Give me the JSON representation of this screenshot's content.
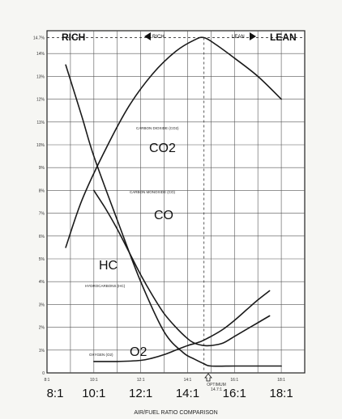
{
  "chart_data": {
    "type": "line",
    "title": "",
    "xlabel": "AIR/FUEL RATIO COMPARISON",
    "ylabel": "",
    "xlim": [
      8,
      19
    ],
    "ylim": [
      0,
      15
    ],
    "grid": true,
    "x_ticks_small": [
      "8:1",
      "10:1",
      "12:1",
      "14:1",
      "16:1",
      "18:1"
    ],
    "x_ticks_big": [
      "8:1",
      "10:1",
      "12:1",
      "14:1",
      "16:1",
      "18:1"
    ],
    "y_ticks": [
      "0",
      "1%",
      "2%",
      "3%",
      "4%",
      "5%",
      "6%",
      "7%",
      "8%",
      "9%",
      "10%",
      "11%",
      "12%",
      "13%",
      "14%",
      "14.7%"
    ],
    "corner_labels": {
      "rich": "RICH",
      "lean": "LEAN"
    },
    "top_arrows": {
      "rich": "RICH",
      "lean": "LEAN"
    },
    "optimum_label": "OPTIMUM",
    "optimum_value": "14.7:1",
    "optimum_x": 14.7,
    "peak_value": 14.7,
    "series": [
      {
        "key": "co2",
        "name": "CARBON DIOXIDE (CO2)",
        "big_label": "CO2",
        "x": [
          8.8,
          9.5,
          10.5,
          11.5,
          12.5,
          13.5,
          14.3,
          14.7,
          15.2,
          16.0,
          17.0,
          18.0
        ],
        "y": [
          5.5,
          7.6,
          9.8,
          11.7,
          13.1,
          14.1,
          14.6,
          14.7,
          14.4,
          13.8,
          13.0,
          12.0
        ]
      },
      {
        "key": "co",
        "name": "CARBON MONOXIDE (CO)",
        "big_label": "CO",
        "x": [
          8.8,
          9.5,
          10.0,
          11.0,
          12.0,
          13.0,
          13.8,
          14.3,
          14.7,
          15.0,
          16.0,
          17.0,
          18.0
        ],
        "y": [
          13.5,
          11.2,
          9.5,
          6.7,
          4.0,
          1.8,
          0.9,
          0.6,
          0.4,
          0.3,
          0.3,
          0.3,
          0.3
        ]
      },
      {
        "key": "hc",
        "name": "HYDROCARBONS (HC)",
        "big_label": "HC",
        "x": [
          10.0,
          10.5,
          11.0,
          11.5,
          12.0,
          12.5,
          13.0,
          13.5,
          14.0,
          14.3,
          14.7,
          15.0,
          15.5,
          16.0,
          16.5,
          17.0,
          17.5
        ],
        "y": [
          8.0,
          7.2,
          6.3,
          5.3,
          4.3,
          3.4,
          2.6,
          2.0,
          1.5,
          1.3,
          1.2,
          1.2,
          1.3,
          1.6,
          1.9,
          2.2,
          2.5
        ]
      },
      {
        "key": "o2",
        "name": "OXYGEN (O2)",
        "big_label": "O2",
        "x": [
          10.0,
          11.0,
          12.0,
          12.5,
          13.0,
          13.5,
          14.0,
          14.5,
          15.0,
          15.5,
          16.0,
          16.5,
          17.0,
          17.5
        ],
        "y": [
          0.5,
          0.5,
          0.55,
          0.65,
          0.8,
          1.0,
          1.2,
          1.35,
          1.6,
          1.9,
          2.3,
          2.75,
          3.2,
          3.6
        ]
      }
    ]
  }
}
